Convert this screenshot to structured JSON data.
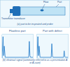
{
  "diagram": {
    "labels": {
      "transducer": "Transmitter transducer",
      "flaw": "Flaw",
      "part": "Part"
    },
    "caption_a": "(a) part to be inspected and probe",
    "caption_b": "(b) electrical signal (commonly referred to as a presentation A or A-scan)"
  },
  "chart_data": [
    {
      "type": "line",
      "title": "Flawless part",
      "color": "#1f78c8",
      "x": [
        0,
        0.3,
        0.5,
        0.7,
        1,
        5,
        8.6,
        8.8,
        9,
        9.2,
        10
      ],
      "values": [
        0,
        0.9,
        0.1,
        0.5,
        0.03,
        0.03,
        0.03,
        0.7,
        0.1,
        0.03,
        0.03
      ],
      "xlim": [
        0,
        10
      ],
      "ylim": [
        0,
        1
      ],
      "tick_labels": false,
      "grid": false
    },
    {
      "type": "line",
      "title": "Part with defect",
      "color": "#1f78c8",
      "x": [
        0,
        0.3,
        0.5,
        0.7,
        1,
        4.6,
        4.8,
        5,
        5.2,
        8.6,
        8.8,
        9,
        9.2,
        10
      ],
      "values": [
        0,
        0.9,
        0.1,
        0.5,
        0.03,
        0.03,
        0.6,
        0.08,
        0.03,
        0.03,
        0.3,
        0.06,
        0.03,
        0.03
      ],
      "xlim": [
        0,
        10
      ],
      "ylim": [
        0,
        1
      ],
      "tick_labels": false,
      "grid": false
    }
  ]
}
